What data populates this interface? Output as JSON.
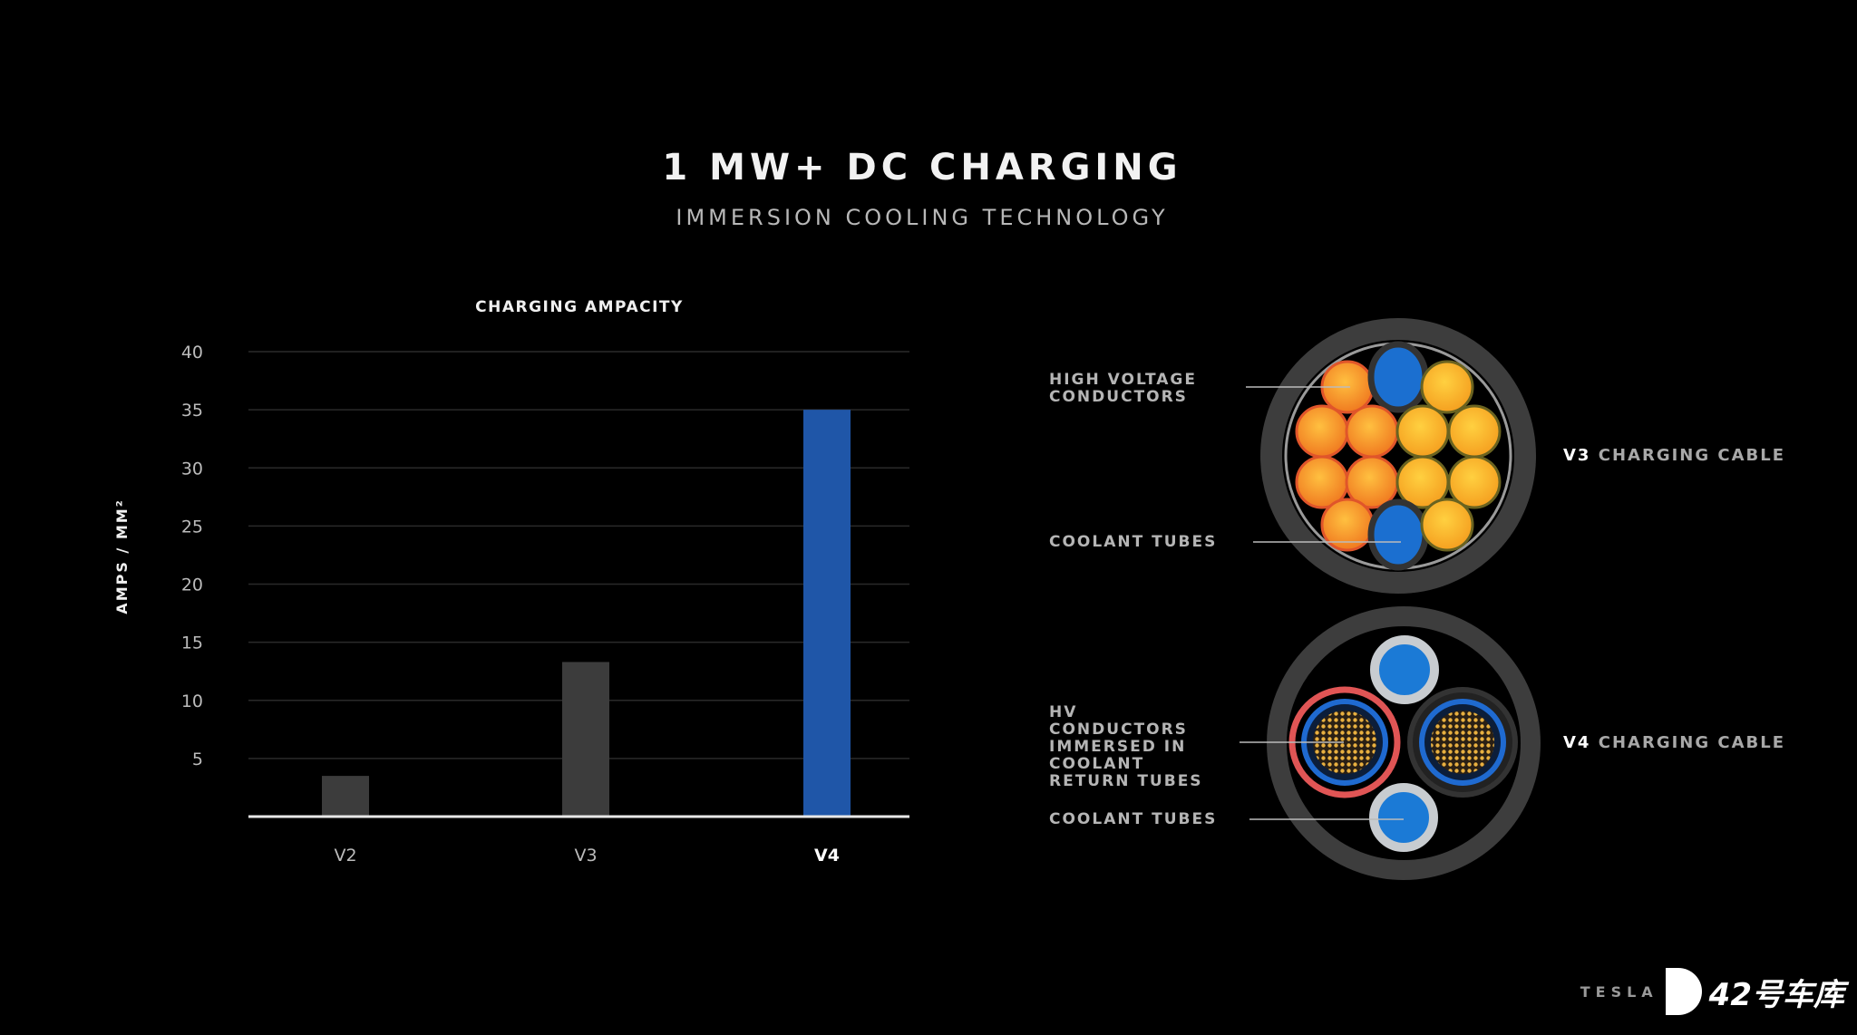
{
  "header": {
    "title": "1 MW+ DC CHARGING",
    "subtitle": "IMMERSION COOLING TECHNOLOGY"
  },
  "chart_data": {
    "type": "bar",
    "title": "CHARGING AMPACITY",
    "xlabel": "",
    "ylabel": "AMPS / MM²",
    "categories": [
      "V2",
      "V3",
      "V4"
    ],
    "values": [
      3.5,
      13.3,
      35
    ],
    "colors": [
      "#3c3c3c",
      "#3c3c3c",
      "#1f56a8"
    ],
    "ylim": [
      0,
      40
    ],
    "yticks": [
      5,
      10,
      15,
      20,
      25,
      30,
      35,
      40
    ],
    "grid": true
  },
  "diagram": {
    "v3": {
      "labels": [
        "HIGH VOLTAGE CONDUCTORS",
        "COOLANT TUBES"
      ],
      "name_bold": "V3",
      "name_rest": "CHARGING CABLE"
    },
    "v4": {
      "labels": [
        "HV CONDUCTORS IMMERSED IN COOLANT RETURN TUBES",
        "COOLANT TUBES"
      ],
      "name_bold": "V4",
      "name_rest": "CHARGING CABLE"
    }
  },
  "logo": {
    "faded": "TESLA",
    "text": "42号车库"
  }
}
